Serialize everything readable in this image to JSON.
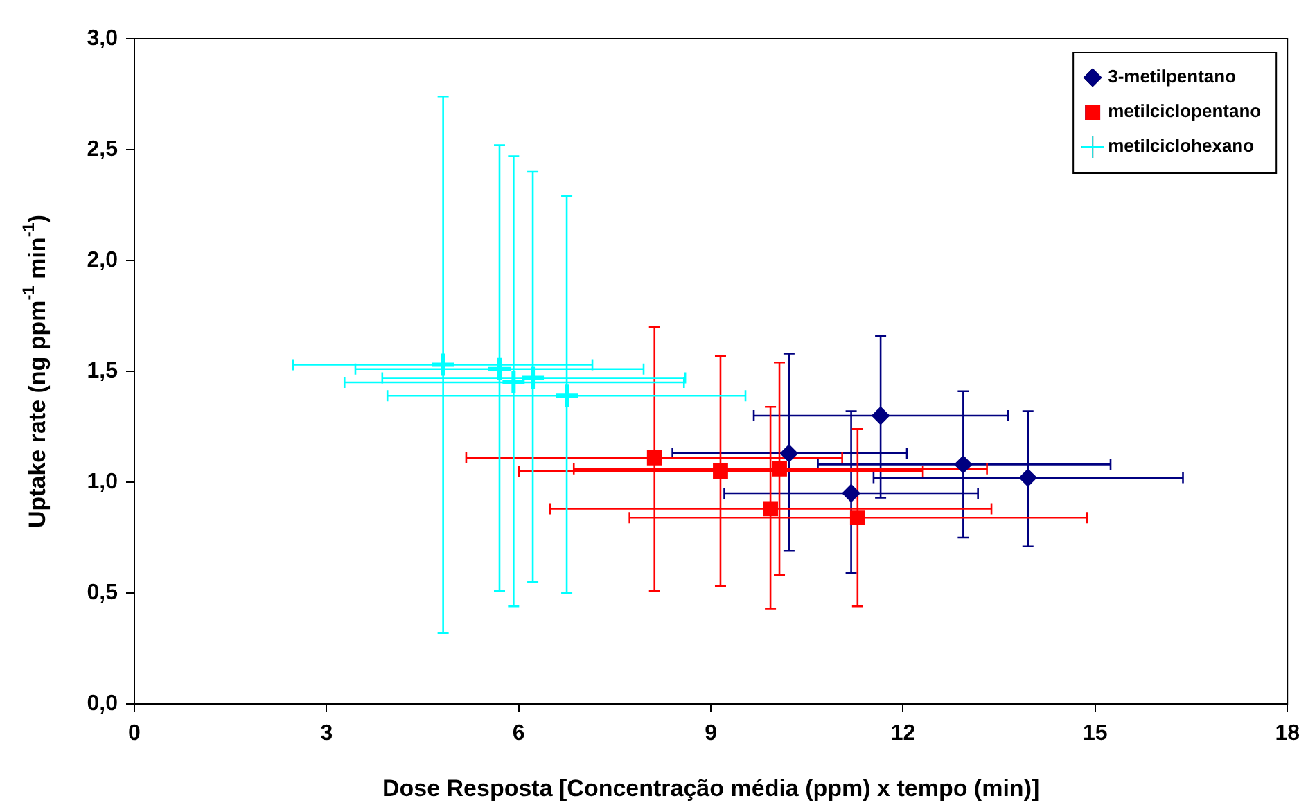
{
  "chart_data": {
    "type": "scatter",
    "xlabel": "Dose Resposta [Concentração média (ppm) x tempo (min)]",
    "ylabel": "Uptake rate (ng ppm$^{-1}$ min$^{-1}$)",
    "xlim": [
      0,
      18
    ],
    "xticks": [
      0,
      3,
      6,
      9,
      12,
      15,
      18
    ],
    "ylim": [
      0,
      3
    ],
    "yticks": [
      {
        "value": 0,
        "label": "0,0"
      },
      {
        "value": 0.5,
        "label": "0,5"
      },
      {
        "value": 1,
        "label": "1,0"
      },
      {
        "value": 1.5,
        "label": "1,5"
      },
      {
        "value": 2,
        "label": "2,0"
      },
      {
        "value": 2.5,
        "label": "2,5"
      },
      {
        "value": 3,
        "label": "3,0"
      }
    ],
    "grid": false,
    "legend": "top right",
    "series": [
      {
        "name": "3-metilpentano",
        "color": "#000080",
        "marker": "diamond",
        "x": [
          10.22,
          11.65,
          12.94,
          13.95,
          11.19
        ],
        "values": [
          1.13,
          1.3,
          1.08,
          1.02,
          0.95
        ],
        "errors": [
          [
            0.69,
            1.58
          ],
          [
            0.93,
            1.66
          ],
          [
            0.75,
            1.41
          ],
          [
            0.71,
            1.32
          ],
          [
            0.59,
            1.32
          ]
        ],
        "xerrors": [
          [
            8.4,
            12.06
          ],
          [
            9.67,
            13.64
          ],
          [
            10.67,
            15.24
          ],
          [
            11.54,
            16.37
          ],
          [
            9.21,
            13.17
          ]
        ]
      },
      {
        "name": "metilciclopentano",
        "color": "#ff0000",
        "marker": "square",
        "x": [
          8.12,
          9.15,
          10.07,
          9.93,
          11.29
        ],
        "values": [
          1.11,
          1.05,
          1.06,
          0.88,
          0.84
        ],
        "errors": [
          [
            0.51,
            1.7
          ],
          [
            0.53,
            1.57
          ],
          [
            0.58,
            1.54
          ],
          [
            0.43,
            1.34
          ],
          [
            0.44,
            1.24
          ]
        ],
        "xerrors": [
          [
            5.18,
            11.05
          ],
          [
            6.0,
            12.31
          ],
          [
            6.86,
            13.31
          ],
          [
            6.49,
            13.38
          ],
          [
            7.73,
            14.87
          ]
        ]
      },
      {
        "name": "metilciclohexano",
        "color": "#00ffff",
        "marker": "cross",
        "x": [
          4.82,
          5.7,
          6.22,
          5.92,
          6.75
        ],
        "values": [
          1.53,
          1.51,
          1.47,
          1.45,
          1.39
        ],
        "errors": [
          [
            0.32,
            2.74
          ],
          [
            0.51,
            2.52
          ],
          [
            0.55,
            2.4
          ],
          [
            0.44,
            2.47
          ],
          [
            0.5,
            2.29
          ]
        ],
        "xerrors": [
          [
            2.48,
            7.15
          ],
          [
            3.45,
            7.95
          ],
          [
            3.87,
            8.6
          ],
          [
            3.28,
            8.58
          ],
          [
            3.95,
            9.54
          ]
        ]
      }
    ]
  }
}
